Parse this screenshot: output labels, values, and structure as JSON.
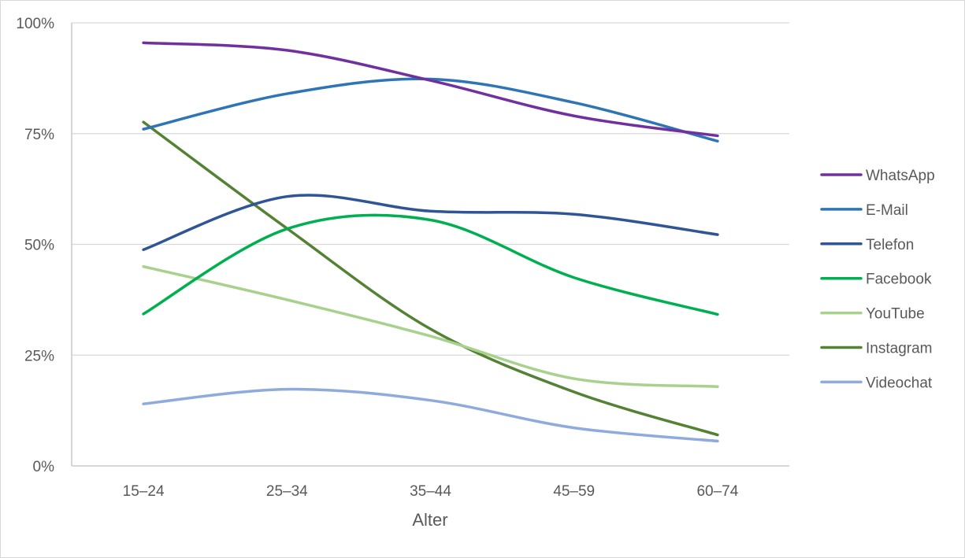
{
  "chart_data": {
    "type": "line",
    "title": "",
    "xlabel": "Alter",
    "ylabel": "",
    "categories": [
      "15–24",
      "25–34",
      "35–44",
      "45–59",
      "60–74"
    ],
    "ylim": [
      0,
      100
    ],
    "yticks": [
      0,
      25,
      50,
      75,
      100
    ],
    "ytick_labels": [
      "0%",
      "25%",
      "50%",
      "75%",
      "100%"
    ],
    "grid": "horizontal",
    "legend_position": "right",
    "smooth": true,
    "series": [
      {
        "name": "WhatsApp",
        "color": "#7030a0",
        "values": [
          95.5,
          93.8,
          87.0,
          79.0,
          74.5
        ]
      },
      {
        "name": "E-Mail",
        "color": "#2e75b6",
        "values": [
          76.0,
          84.0,
          87.3,
          82.0,
          73.3
        ]
      },
      {
        "name": "Telefon",
        "color": "#2f5597",
        "values": [
          48.8,
          60.8,
          57.5,
          56.8,
          52.2
        ]
      },
      {
        "name": "Facebook",
        "color": "#00b050",
        "values": [
          34.3,
          53.5,
          55.5,
          42.5,
          34.2
        ]
      },
      {
        "name": "YouTube",
        "color": "#a9d18e",
        "values": [
          45.0,
          37.5,
          29.3,
          19.7,
          17.9
        ]
      },
      {
        "name": "Instagram",
        "color": "#548235",
        "values": [
          77.6,
          53.6,
          30.9,
          16.7,
          7.0
        ]
      },
      {
        "name": "Videochat",
        "color": "#8faadc",
        "values": [
          14.0,
          17.3,
          14.8,
          8.6,
          5.6
        ]
      }
    ]
  }
}
